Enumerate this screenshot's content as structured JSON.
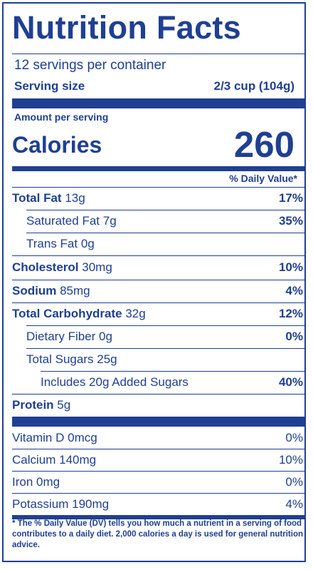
{
  "title": "Nutrition Facts",
  "servings_per_container": "12 servings per container",
  "serving_size": {
    "label": "Serving size",
    "value": "2/3 cup (104g)"
  },
  "amount_per_serving": "Amount per serving",
  "calories": {
    "label": "Calories",
    "value": "260"
  },
  "daily_value_header": "% Daily Value*",
  "nutrients": [
    {
      "name": "Total Fat",
      "amount": "13g",
      "dv": "17%"
    },
    {
      "name": "Saturated Fat",
      "amount": "7g",
      "dv": "35%"
    },
    {
      "name": "Trans Fat",
      "amount": "0g",
      "dv": ""
    },
    {
      "name": "Cholesterol",
      "amount": "30mg",
      "dv": "10%"
    },
    {
      "name": "Sodium",
      "amount": "85mg",
      "dv": "4%"
    },
    {
      "name": "Total Carbohydrate",
      "amount": "32g",
      "dv": "12%"
    },
    {
      "name": "Dietary Fiber",
      "amount": "0g",
      "dv": "0%"
    },
    {
      "name": "Total Sugars",
      "amount": "25g",
      "dv": ""
    },
    {
      "name": "Includes 20g Added Sugars",
      "amount": "",
      "dv": "40%"
    },
    {
      "name": "Protein",
      "amount": "5g",
      "dv": ""
    }
  ],
  "vitamins": [
    {
      "name": "Vitamin D",
      "amount": "0mcg",
      "dv": "0%"
    },
    {
      "name": "Calcium",
      "amount": "140mg",
      "dv": "10%"
    },
    {
      "name": "Iron",
      "amount": "0mg",
      "dv": "0%"
    },
    {
      "name": "Potassium",
      "amount": "190mg",
      "dv": "4%"
    }
  ],
  "footnote": "* The % Daily Value (DV) tells you how much a nutrient in a serving of food contributes to a daily diet. 2,000 calories a day is used for general nutrition advice.",
  "colors": {
    "ink": "#1f3f93",
    "background": "#ffffff"
  }
}
